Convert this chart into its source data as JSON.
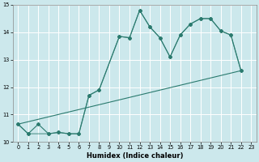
{
  "xlabel": "Humidex (Indice chaleur)",
  "xlim": [
    -0.5,
    23.5
  ],
  "ylim": [
    10,
    15
  ],
  "yticks": [
    10,
    11,
    12,
    13,
    14,
    15
  ],
  "xticks": [
    0,
    1,
    2,
    3,
    4,
    5,
    6,
    7,
    8,
    9,
    10,
    11,
    12,
    13,
    14,
    15,
    16,
    17,
    18,
    19,
    20,
    21,
    22,
    23
  ],
  "bg_color": "#cce8ec",
  "grid_color": "#ffffff",
  "line_color": "#2a7a6e",
  "line1_x": [
    0,
    1,
    2,
    3,
    4,
    5,
    6,
    7,
    8,
    10,
    11,
    12,
    13,
    14,
    15,
    16,
    17,
    18,
    19,
    20,
    21,
    22
  ],
  "line1_y": [
    10.65,
    10.3,
    10.65,
    10.3,
    10.35,
    10.3,
    10.3,
    11.7,
    11.9,
    13.85,
    13.8,
    14.8,
    14.2,
    13.8,
    13.1,
    13.9,
    14.3,
    14.5,
    14.5,
    14.05,
    13.9,
    12.6
  ],
  "line2_x": [
    0,
    22
  ],
  "line2_y": [
    10.65,
    12.6
  ],
  "line3_x": [
    0,
    1,
    3,
    4,
    5,
    6,
    7,
    8,
    10,
    11,
    12,
    13,
    14,
    15,
    16,
    17,
    18,
    19,
    20,
    21,
    22
  ],
  "line3_y": [
    10.65,
    10.3,
    10.3,
    10.35,
    10.3,
    10.3,
    11.7,
    11.9,
    13.85,
    13.8,
    14.8,
    14.2,
    13.8,
    13.1,
    13.9,
    14.3,
    14.5,
    14.5,
    14.05,
    13.9,
    12.6
  ]
}
